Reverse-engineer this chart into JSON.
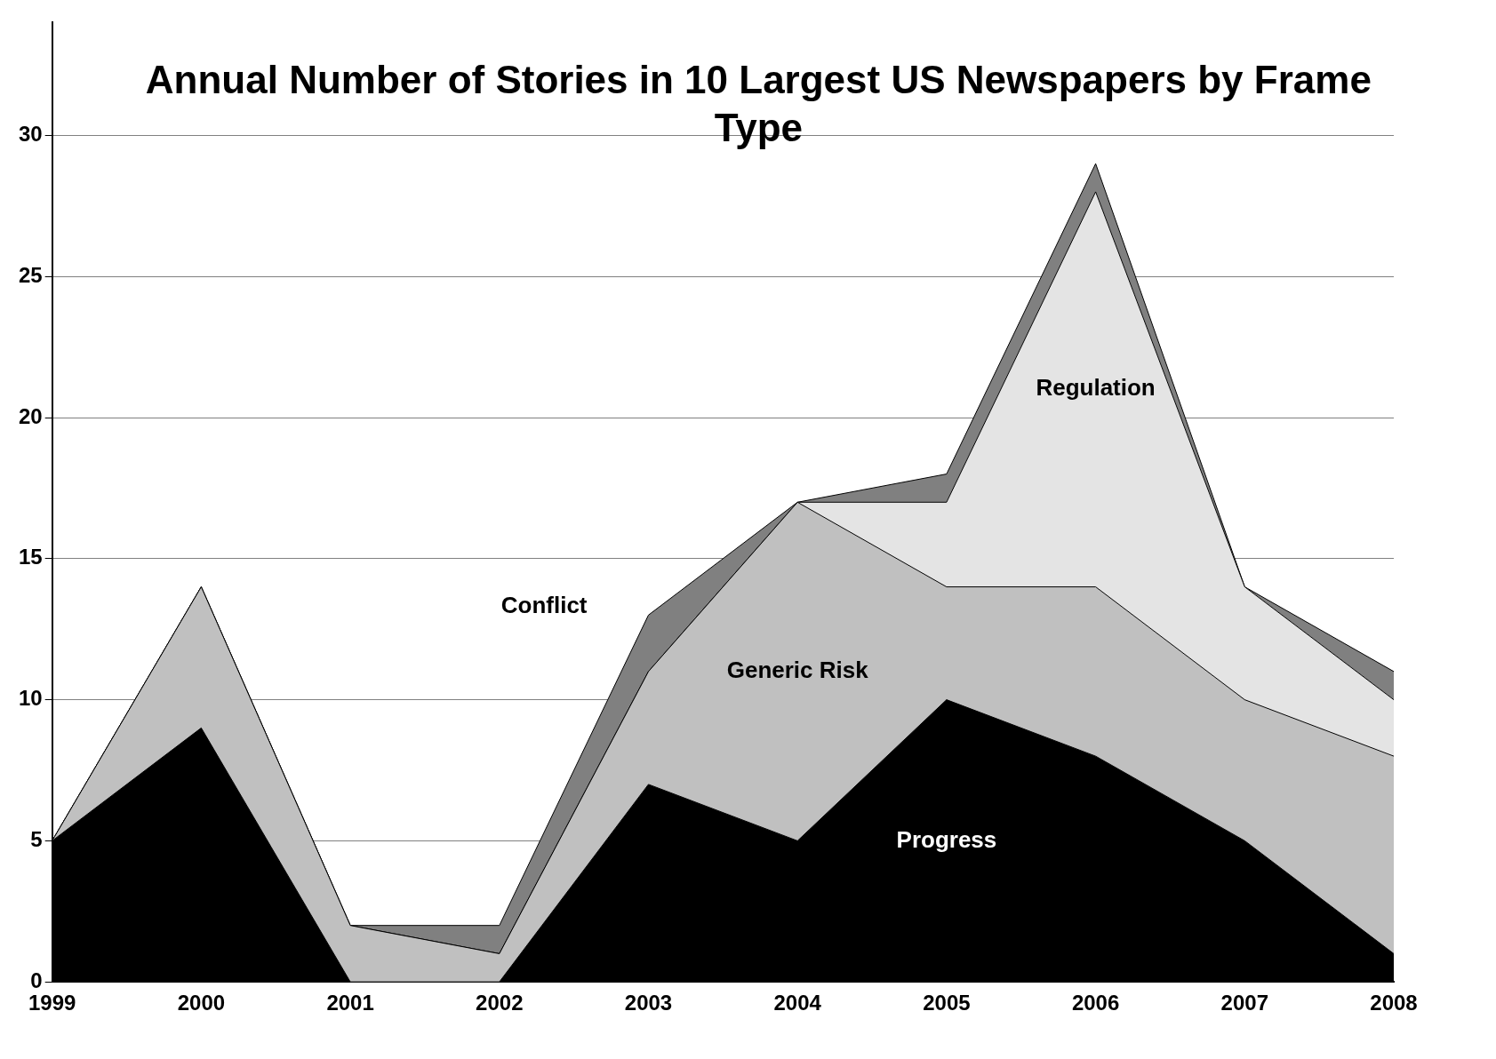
{
  "chart_data": {
    "type": "area",
    "title": "Annual Number of Stories in 10 Largest US Newspapers by Frame Type",
    "stacked": true,
    "categories": [
      "1999",
      "2000",
      "2001",
      "2002",
      "2003",
      "2004",
      "2005",
      "2006",
      "2007",
      "2008"
    ],
    "series": [
      {
        "name": "Progress",
        "color": "#000000",
        "values": [
          5,
          9,
          0,
          0,
          7,
          5,
          10,
          8,
          5,
          1
        ]
      },
      {
        "name": "Generic Risk",
        "color": "#c0c0c0",
        "values": [
          0,
          5,
          2,
          1,
          4,
          12,
          4,
          6,
          5,
          7
        ]
      },
      {
        "name": "Regulation",
        "color": "#e4e4e4",
        "values": [
          0,
          0,
          0,
          0,
          0,
          0,
          3,
          14,
          4,
          2
        ]
      },
      {
        "name": "Conflict",
        "color": "#808080",
        "values": [
          0,
          0,
          0,
          1,
          2,
          0,
          1,
          1,
          0,
          1
        ]
      }
    ],
    "ylim": [
      0,
      34
    ],
    "yticks": [
      0,
      5,
      10,
      15,
      20,
      25,
      30
    ],
    "grid": "y"
  }
}
